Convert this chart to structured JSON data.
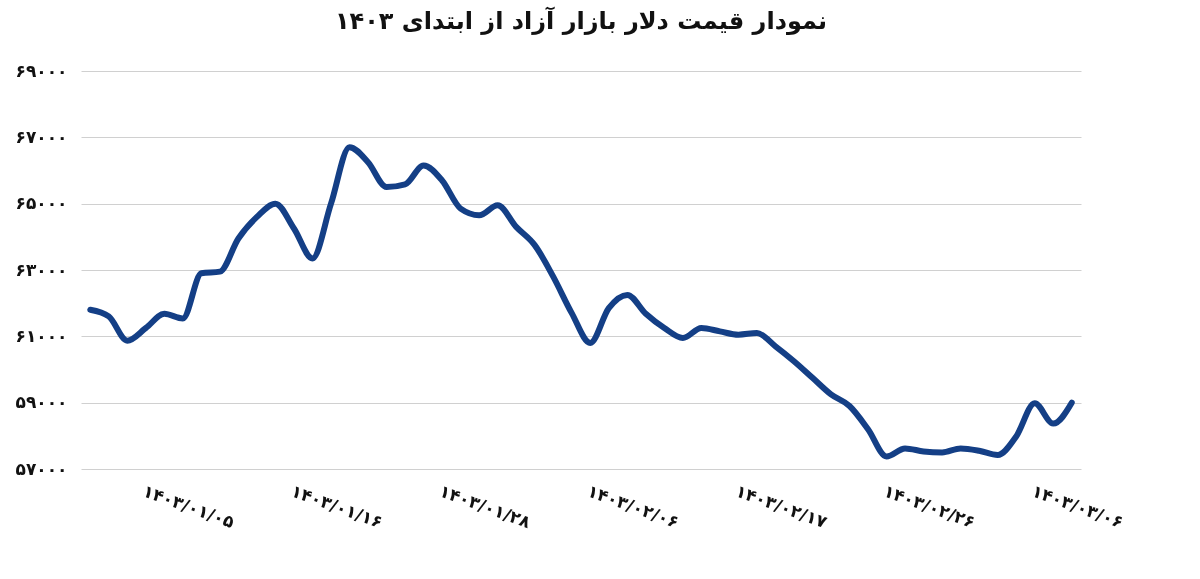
{
  "chart_data": {
    "type": "line",
    "title": "نمودار قیمت دلار بازار آزاد از ابتدای ۱۴۰۳",
    "categories": [
      null,
      null,
      null,
      "۱۴۰۳/۰۱/۰۵",
      null,
      null,
      null,
      null,
      null,
      null,
      null,
      "۱۴۰۳/۰۱/۱۶",
      null,
      null,
      null,
      null,
      null,
      null,
      null,
      "۱۴۰۳/۰۱/۲۸",
      null,
      null,
      null,
      null,
      null,
      null,
      null,
      "۱۴۰۳/۰۲/۰۶",
      null,
      null,
      null,
      null,
      null,
      null,
      null,
      "۱۴۰۳/۰۲/۱۷",
      null,
      null,
      null,
      null,
      null,
      null,
      null,
      "۱۴۰۳/۰۲/۲۶",
      null,
      null,
      null,
      null,
      null,
      null,
      null,
      "۱۴۰۳/۰۳/۰۶",
      null,
      null
    ],
    "series": [
      {
        "color": "#143f86",
        "values": [
          61800,
          61600,
          60870,
          61250,
          61680,
          61540,
          62900,
          62950,
          63950,
          64600,
          65000,
          64250,
          63350,
          65000,
          66700,
          66250,
          65500,
          65580,
          66150,
          65700,
          64850,
          64650,
          64950,
          64300,
          63750,
          62800,
          61700,
          60800,
          61850,
          62250,
          61680,
          61250,
          60950,
          61250,
          61150,
          61050,
          61100,
          60700,
          60250,
          59750,
          59250,
          58900,
          58200,
          57380,
          57620,
          57530,
          57500,
          57620,
          57550,
          57420,
          57980,
          58980,
          58370,
          59000
        ]
      }
    ],
    "ylim": [
      57000,
      69000
    ],
    "yticks": [
      {
        "value": 57000,
        "label": "۵۷۰۰۰"
      },
      {
        "value": 59000,
        "label": "۵۹۰۰۰"
      },
      {
        "value": 61000,
        "label": "۶۱۰۰۰"
      },
      {
        "value": 63000,
        "label": "۶۳۰۰۰"
      },
      {
        "value": 65000,
        "label": "۶۵۰۰۰"
      },
      {
        "value": 67000,
        "label": "۶۷۰۰۰"
      },
      {
        "value": 69000,
        "label": "۶۹۰۰۰"
      }
    ],
    "grid": "y",
    "marker": "none",
    "line_style": "solid"
  }
}
